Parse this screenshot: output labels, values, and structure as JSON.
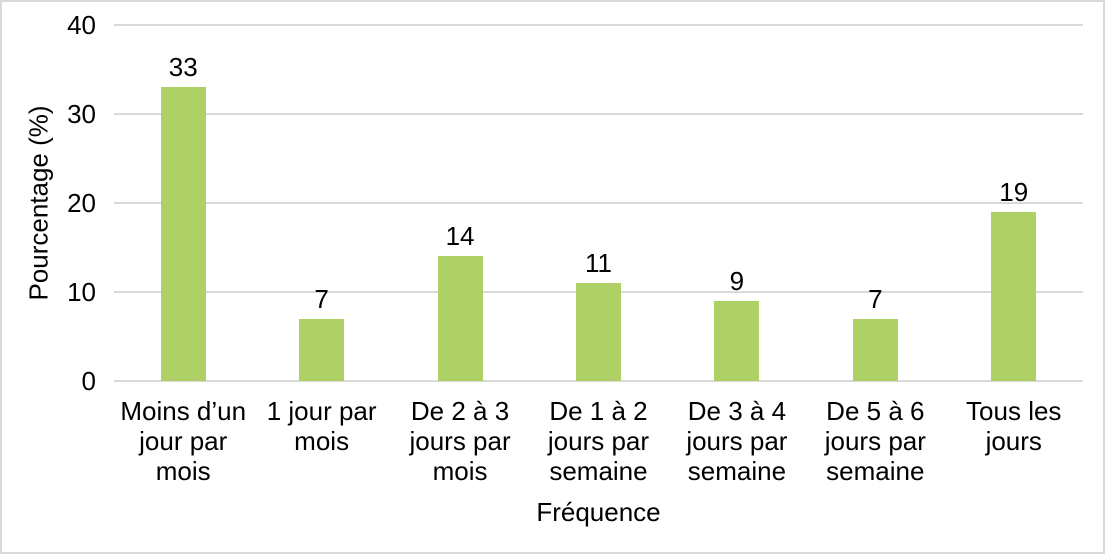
{
  "chart_data": {
    "type": "bar",
    "title": "",
    "categories": [
      "Moins d’un\njour par mois",
      "1 jour par\nmois",
      "De 2 à 3\njours par\nmois",
      "De 1 à 2\njours par\nsemaine",
      "De 3 à 4\njours par\nsemaine",
      "De 5 à 6\njours par\nsemaine",
      "Tous les jours"
    ],
    "values": [
      33,
      7,
      14,
      11,
      9,
      7,
      19
    ],
    "xlabel": "Fréquence",
    "ylabel": "Pourcentage (%)",
    "ylim": [
      0,
      40
    ],
    "yticks": [
      0,
      10,
      20,
      30,
      40
    ],
    "grid": true,
    "legend": "none",
    "bar_color": "#afd065",
    "grid_color": "#d9d9d9",
    "frame_color": "#d9d9d9",
    "text_color": "#000000"
  }
}
